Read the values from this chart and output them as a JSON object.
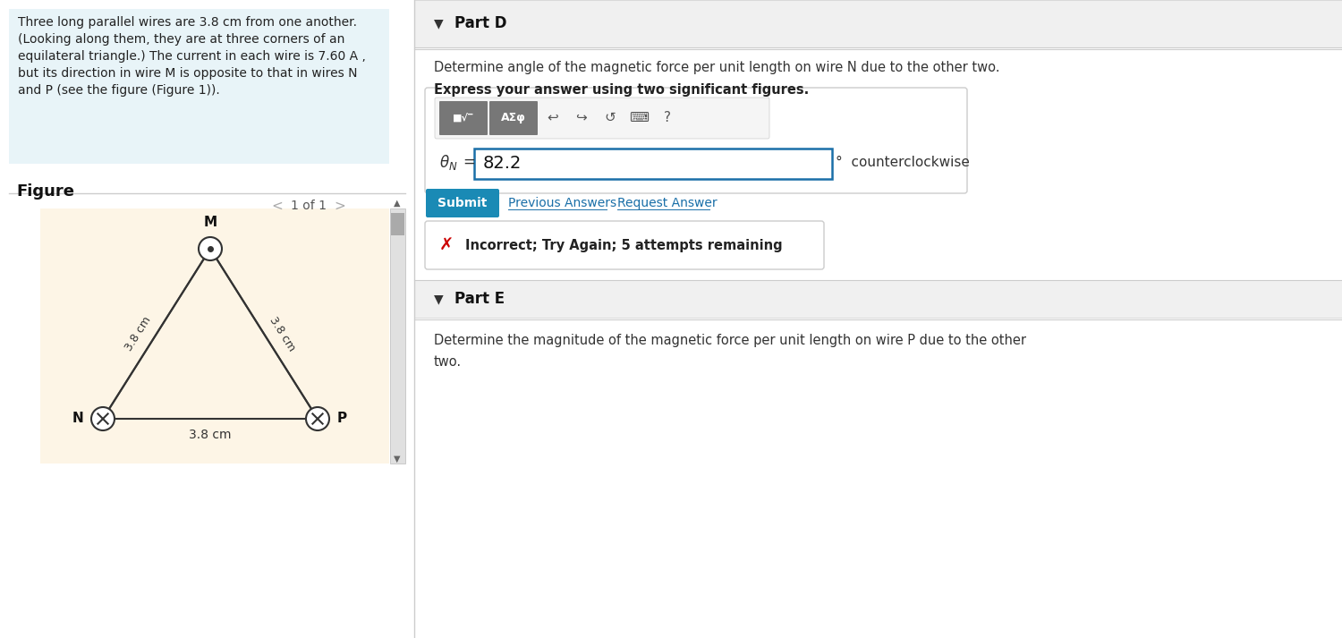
{
  "bg_color": "#ffffff",
  "left_panel_bg": "#e8f4f8",
  "figure_bg": "#fdf5e6",
  "left_text_lines": [
    "Three long parallel wires are 3.8 cm from one another.",
    "(Looking along them, they are at three corners of an",
    "equilateral triangle.) The current in each wire is 7.60 A ,",
    "but its direction in wire M is opposite to that in wires N",
    "and P (see the figure (Figure 1))."
  ],
  "figure_label": "Figure",
  "nav_text": "1 of 1",
  "distance_label": "3.8 cm",
  "part_d_title": "Part D",
  "part_d_question": "Determine angle of the magnetic force per unit length on wire N due to the other two.",
  "part_d_bold": "Express your answer using two significant figures.",
  "theta_N_label": "θₙ =",
  "answer_value": "82.2",
  "unit_text": "°  counterclockwise",
  "submit_text": "Submit",
  "prev_answers_text": "Previous Answers",
  "request_answer_text": "Request Answer",
  "incorrect_text": "Incorrect; Try Again; 5 attempts remaining",
  "part_e_title": "Part E",
  "part_e_question_1": "Determine the magnitude of the magnetic force per unit length on wire P due to the other",
  "part_e_question_2": "two.",
  "submit_color": "#1a8ab5",
  "link_color": "#1a6fa8",
  "incorrect_red": "#cc0000",
  "input_border": "#1a6fa8",
  "divider_color": "#cccccc",
  "scrollbar_bg": "#e0e0e0",
  "scrollbar_thumb": "#aaaaaa",
  "header_bg": "#f0f0f0",
  "toolbar_btn_bg": "#777777",
  "toolbar_bg": "#f5f5f5"
}
